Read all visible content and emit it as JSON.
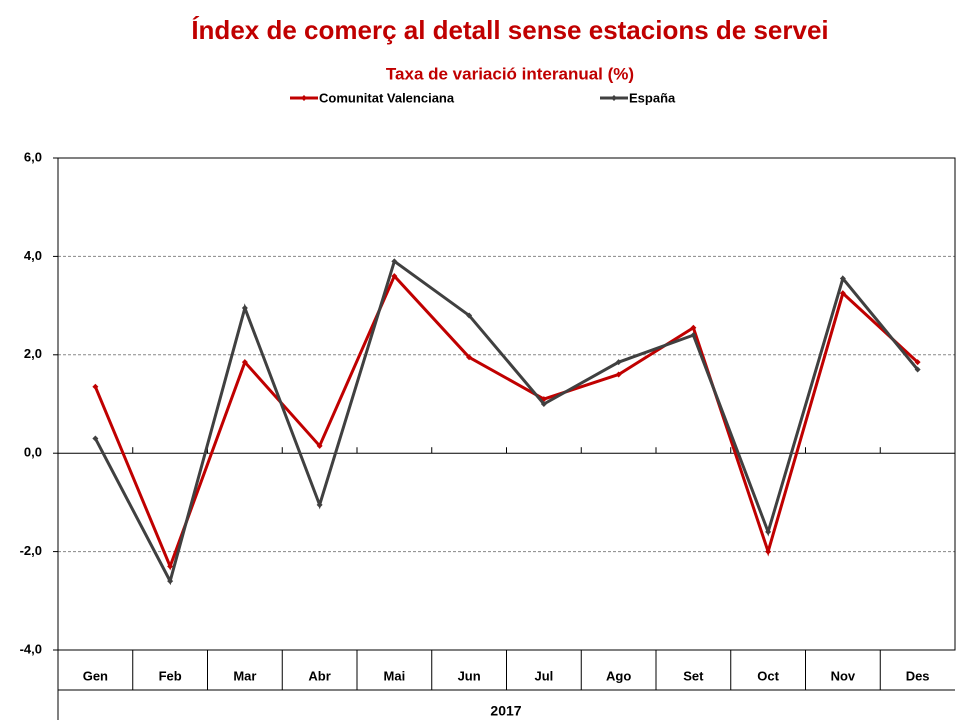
{
  "chart_data": {
    "type": "line",
    "title": "Índex de comerç al detall sense estacions de servei",
    "subtitle": "Taxa de variació interanual (%)",
    "x_label": "2017",
    "categories": [
      "Gen",
      "Feb",
      "Mar",
      "Abr",
      "Mai",
      "Jun",
      "Jul",
      "Ago",
      "Set",
      "Oct",
      "Nov",
      "Des"
    ],
    "series": [
      {
        "name": "Comunitat Valenciana",
        "color": "#c00000",
        "values": [
          1.35,
          -2.3,
          1.85,
          0.15,
          3.6,
          1.95,
          1.1,
          1.6,
          2.55,
          -2.0,
          3.25,
          1.85
        ]
      },
      {
        "name": "España",
        "color": "#404040",
        "values": [
          0.3,
          -2.6,
          2.95,
          -1.05,
          3.9,
          2.8,
          1.0,
          1.85,
          2.4,
          -1.6,
          3.55,
          1.7
        ]
      }
    ],
    "ylim": [
      -4,
      6
    ],
    "yticks": [
      {
        "value": -4,
        "label": "-4,0"
      },
      {
        "value": -2,
        "label": "-2,0"
      },
      {
        "value": 0,
        "label": "0,0"
      },
      {
        "value": 2,
        "label": "2,0"
      },
      {
        "value": 4,
        "label": "4,0"
      },
      {
        "value": 6,
        "label": "6,0"
      }
    ],
    "grid": true
  }
}
